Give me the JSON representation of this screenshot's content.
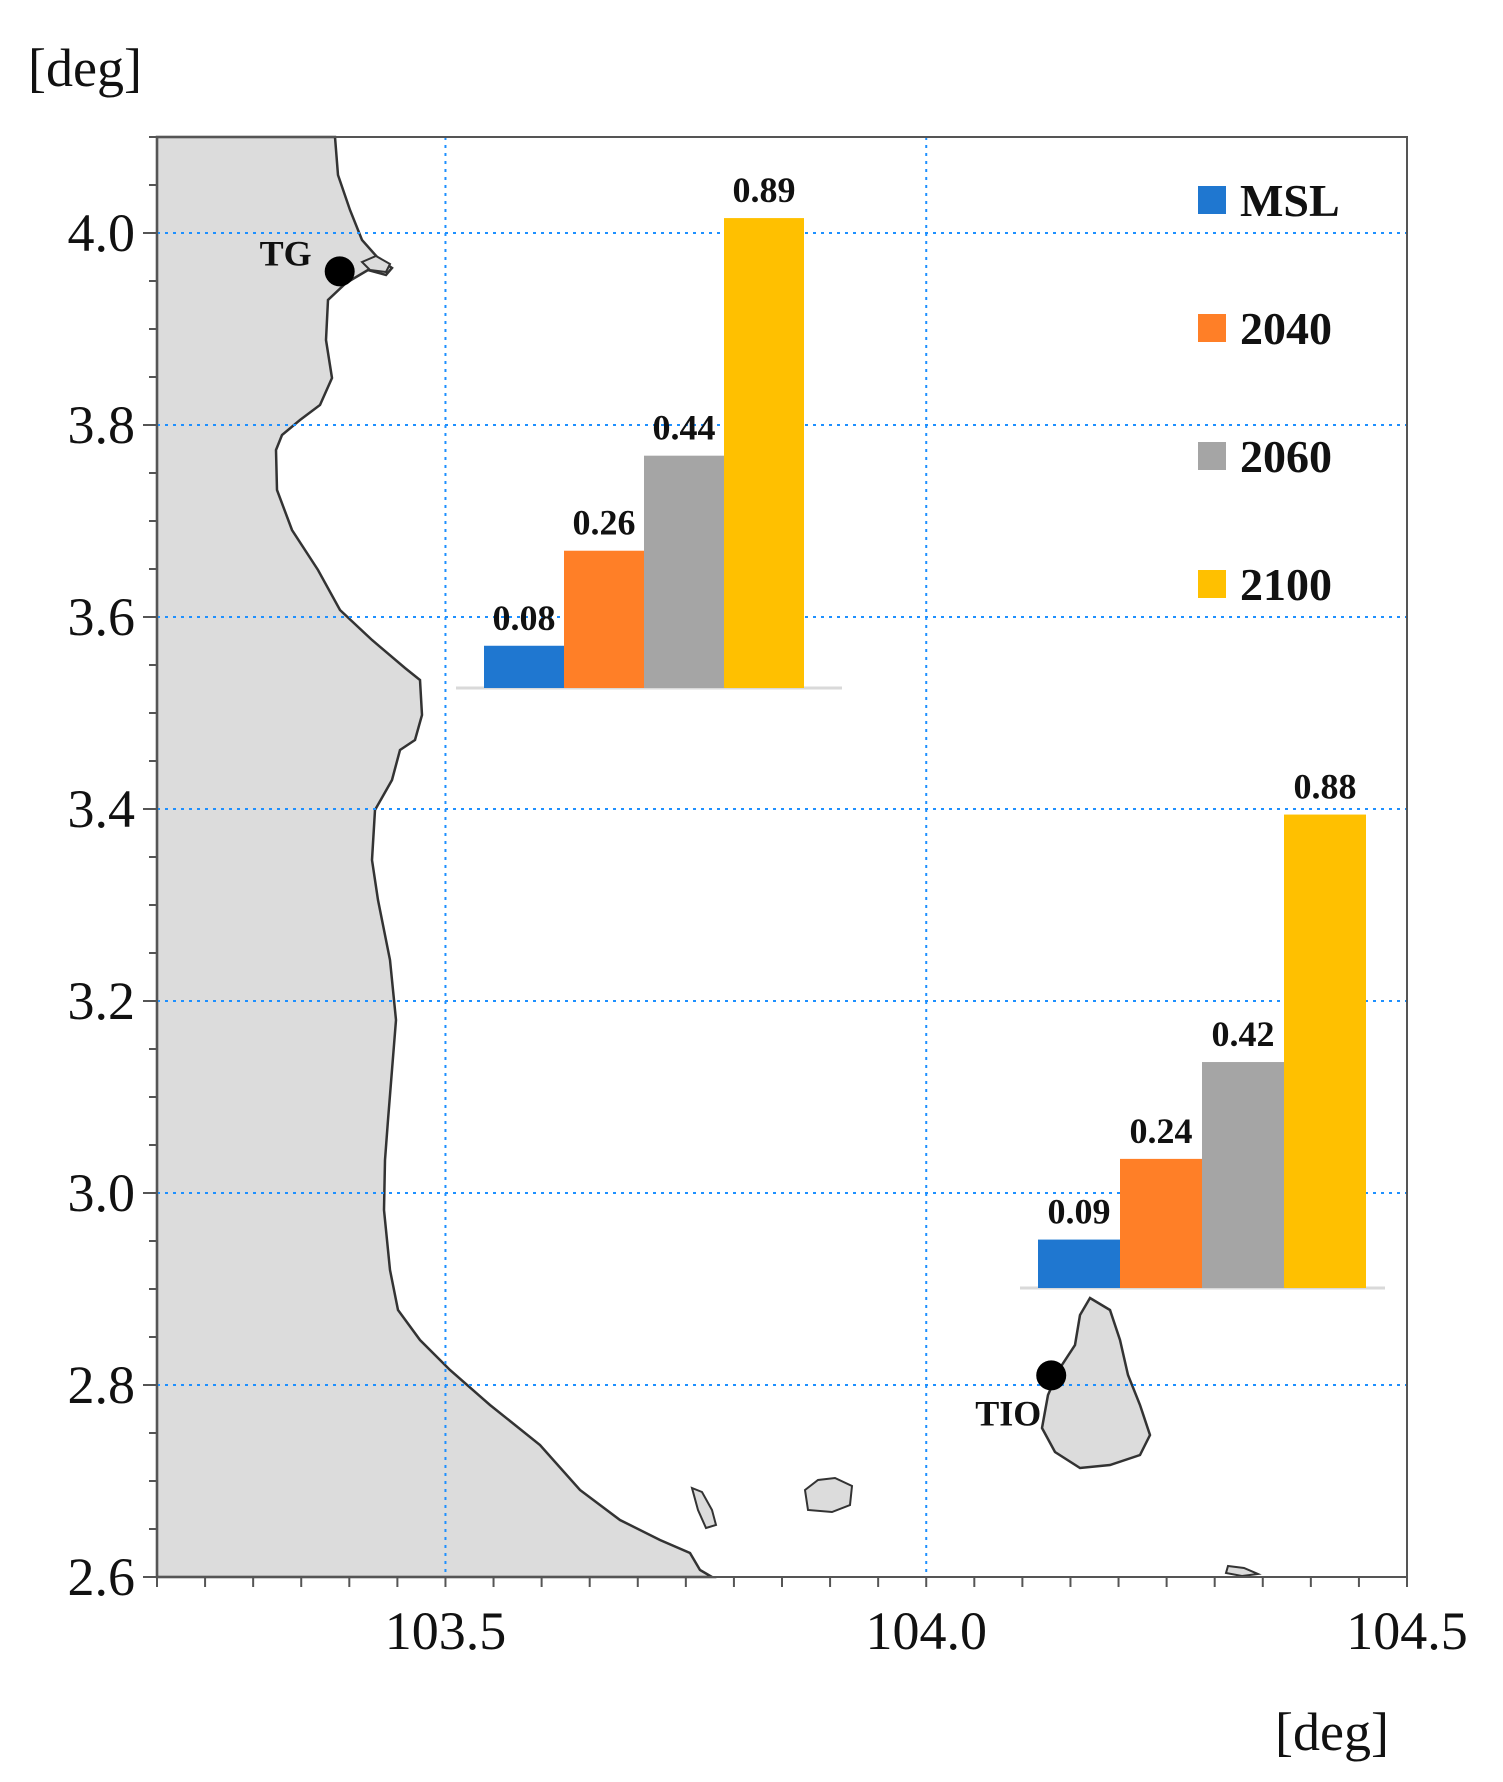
{
  "map": {
    "y_unit_label": "[deg]",
    "x_unit_label": "[deg]",
    "x_ticks": [
      "103.5",
      "104.0",
      "104.5"
    ],
    "y_ticks": [
      "2.6",
      "2.8",
      "3.0",
      "3.2",
      "3.4",
      "3.6",
      "3.8",
      "4.0"
    ],
    "lon_range": [
      103.2,
      104.5
    ],
    "lat_range": [
      2.6,
      4.1
    ],
    "grid": "dotted",
    "land_color": "#dcdcdc",
    "grid_color": "#1e90ff",
    "stations": [
      {
        "label": "TG",
        "lon": 103.39,
        "lat": 3.96
      },
      {
        "label": "TIO",
        "lon": 104.13,
        "lat": 2.81
      }
    ]
  },
  "legend": {
    "placement": "top-right",
    "items": [
      {
        "label": "MSL",
        "color": "#1f77d0"
      },
      {
        "label": "2040",
        "color": "#ff7f27"
      },
      {
        "label": "2060",
        "color": "#a5a5a5"
      },
      {
        "label": "2100",
        "color": "#ffc000"
      }
    ]
  },
  "chart_data": [
    {
      "type": "bar",
      "station": "TG",
      "categories": [
        "MSL",
        "2040",
        "2060",
        "2100"
      ],
      "values": [
        0.08,
        0.26,
        0.44,
        0.89
      ],
      "value_labels": [
        "0.08",
        "0.26",
        "0.44",
        "0.89"
      ],
      "colors": [
        "#1f77d0",
        "#ff7f27",
        "#a5a5a5",
        "#ffc000"
      ]
    },
    {
      "type": "bar",
      "station": "TIO",
      "categories": [
        "MSL",
        "2040",
        "2060",
        "2100"
      ],
      "values": [
        0.09,
        0.24,
        0.42,
        0.88
      ],
      "value_labels": [
        "0.09",
        "0.24",
        "0.42",
        "0.88"
      ],
      "colors": [
        "#1f77d0",
        "#ff7f27",
        "#a5a5a5",
        "#ffc000"
      ]
    }
  ]
}
